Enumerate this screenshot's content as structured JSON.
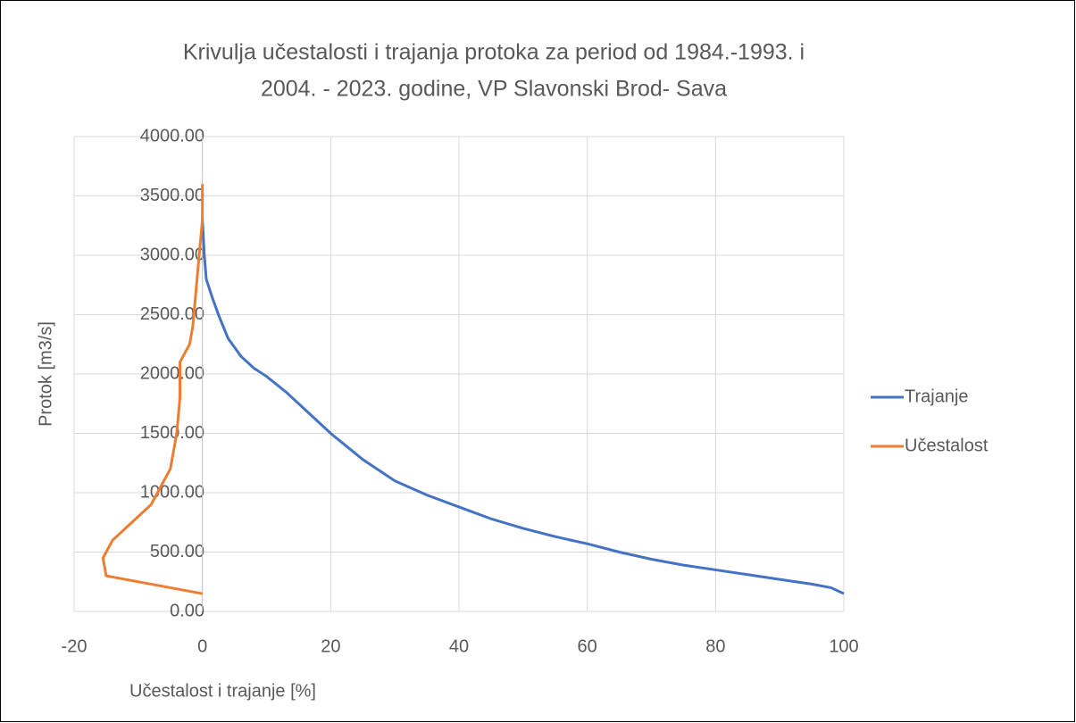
{
  "chart_data": {
    "type": "line",
    "title": [
      "Krivulja učestalosti i trajanja protoka za period od 1984.-1993. i",
      "2004. - 2023. godine, VP Slavonski Brod- Sava"
    ],
    "xlabel": "Učestalost i trajanje [%]",
    "ylabel": "Protok [m3/s]",
    "xlim": [
      -20,
      100
    ],
    "xticks": [
      -20,
      0,
      20,
      40,
      60,
      80,
      100
    ],
    "ylim": [
      0,
      4000
    ],
    "yticks": [
      {
        "value": 0,
        "label": "0.00"
      },
      {
        "value": 500,
        "label": "500.00"
      },
      {
        "value": 1000,
        "label": "1000.00"
      },
      {
        "value": 1500,
        "label": "1500.00"
      },
      {
        "value": 2000,
        "label": "2000.00"
      },
      {
        "value": 2500,
        "label": "2500.00"
      },
      {
        "value": 3000,
        "label": "3000.00"
      },
      {
        "value": 3500,
        "label": "3500.00"
      },
      {
        "value": 4000,
        "label": "4000.00"
      }
    ],
    "grid": true,
    "legend": "right",
    "series": [
      {
        "name": "Trajanje",
        "color": "#4472c4",
        "x": [
          0,
          0.3,
          0.6,
          1.5,
          2.5,
          4,
          6,
          8,
          10,
          13,
          16,
          20,
          25,
          30,
          35,
          40,
          45,
          50,
          55,
          60,
          65,
          70,
          75,
          80,
          85,
          90,
          95,
          98,
          100
        ],
        "values": [
          3300,
          3000,
          2800,
          2650,
          2500,
          2300,
          2150,
          2050,
          1980,
          1850,
          1700,
          1500,
          1280,
          1100,
          980,
          880,
          780,
          700,
          630,
          570,
          500,
          440,
          390,
          350,
          310,
          270,
          230,
          200,
          150
        ]
      },
      {
        "name": "Učestalost",
        "color": "#ed7d31",
        "x": [
          0,
          -15,
          -15.5,
          -14,
          -11,
          -8,
          -7,
          -5,
          -4,
          -3.5,
          -3.5,
          -2,
          -1.5,
          -1,
          -0.5,
          0,
          0
        ],
        "values": [
          150,
          300,
          450,
          600,
          750,
          900,
          1000,
          1200,
          1500,
          1800,
          2100,
          2250,
          2400,
          2700,
          3000,
          3300,
          3600
        ]
      }
    ]
  }
}
